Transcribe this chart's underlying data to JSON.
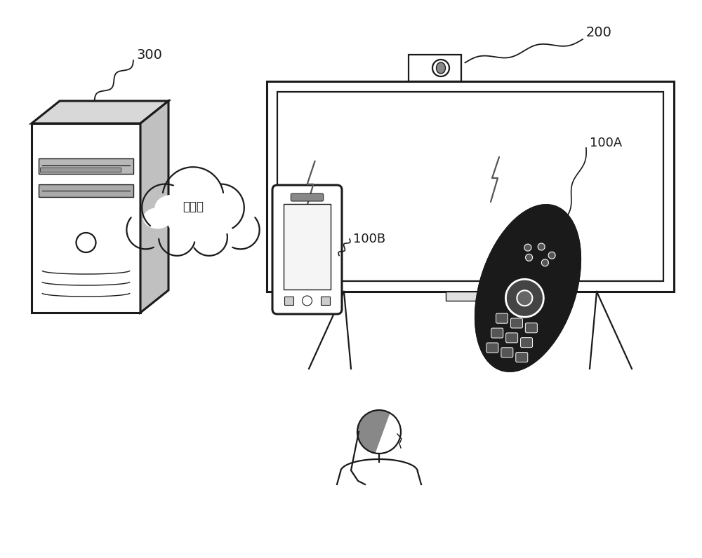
{
  "background_color": "#ffffff",
  "label_300": "300",
  "label_200": "200",
  "label_100A": "100A",
  "label_100B": "100B",
  "label_internet": "互联网",
  "line_color": "#1a1a1a",
  "lw_thick": 2.2,
  "lw_med": 1.6,
  "lw_thin": 1.0
}
